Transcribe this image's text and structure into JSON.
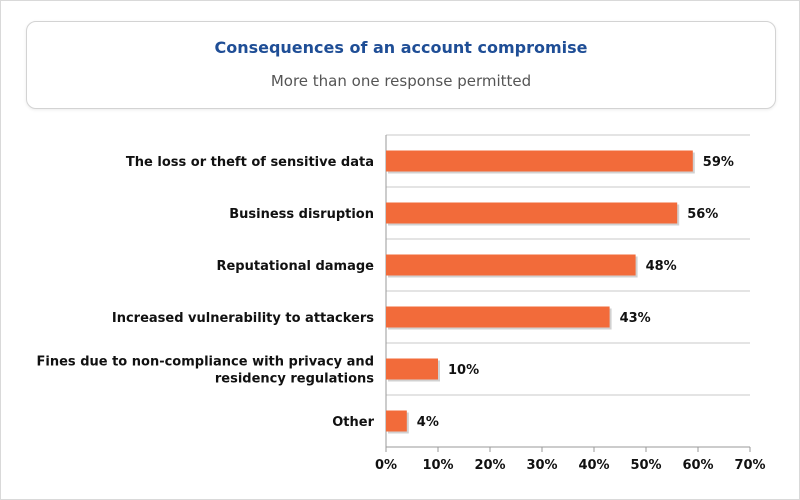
{
  "header": {
    "title": "Consequences of an account compromise",
    "subtitle": "More than one response permitted"
  },
  "colors": {
    "bar": "#f26b3a",
    "title": "#1f4e96",
    "grid": "#c8c8c8",
    "axis": "#9a9a9a",
    "text": "#111111"
  },
  "chart_data": {
    "type": "bar",
    "orientation": "horizontal",
    "categories": [
      [
        "The loss or theft of sensitive data"
      ],
      [
        "Business disruption"
      ],
      [
        "Reputational damage"
      ],
      [
        "Increased vulnerability to attackers"
      ],
      [
        "Fines due to non-compliance with privacy and",
        "residency regulations"
      ],
      [
        "Other"
      ]
    ],
    "values": [
      59,
      56,
      48,
      43,
      10,
      4
    ],
    "value_labels": [
      "59%",
      "56%",
      "48%",
      "43%",
      "10%",
      "4%"
    ],
    "xlim": [
      0,
      70
    ],
    "xticks": [
      0,
      10,
      20,
      30,
      40,
      50,
      60,
      70
    ],
    "xtick_labels": [
      "0%",
      "10%",
      "20%",
      "30%",
      "40%",
      "50%",
      "60%",
      "70%"
    ],
    "grid": "horizontal separators between categories",
    "legend": "none"
  }
}
